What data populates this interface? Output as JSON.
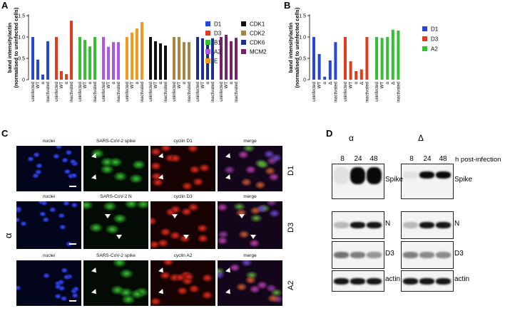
{
  "panels": {
    "a": "A",
    "b": "B",
    "c": "C",
    "d": "D"
  },
  "chart_data": [
    {
      "type": "bar",
      "ylabel": "band intensity/actin\n(normalised to uninfected cells)",
      "ylim": [
        0,
        1.5
      ],
      "yticks": [
        "0",
        "0.5",
        "1.0",
        "1.5"
      ],
      "ytick_values": [
        0,
        0.5,
        1.0,
        1.5
      ],
      "categories": [
        "uninfected",
        "WT",
        "α",
        "inactivated"
      ],
      "groups": [
        {
          "name": "D1",
          "color": "#2646d9",
          "values": [
            1.0,
            0.47,
            0.12,
            0.9
          ]
        },
        {
          "name": "D3",
          "color": "#e33b1e",
          "values": [
            1.0,
            0.2,
            0.13,
            1.38
          ]
        },
        {
          "name": "B1",
          "color": "#33c033",
          "values": [
            1.0,
            0.93,
            0.78,
            1.0
          ]
        },
        {
          "name": "A2",
          "color": "#b056e0",
          "values": [
            1.0,
            0.77,
            0.88,
            0.88
          ]
        },
        {
          "name": "E",
          "color": "#f29a1f",
          "values": [
            1.0,
            1.1,
            1.2,
            1.35
          ]
        },
        {
          "name": "CDK1",
          "color": "#111111",
          "values": [
            1.0,
            0.9,
            0.85,
            0.8
          ]
        },
        {
          "name": "CDK2",
          "color": "#a68740",
          "values": [
            1.0,
            1.0,
            0.88,
            0.88
          ]
        },
        {
          "name": "CDK6",
          "color": "#1c2f8f",
          "values": [
            1.0,
            0.97,
            0.85,
            0.97
          ]
        },
        {
          "name": "MCM2",
          "color": "#7a1f6b",
          "values": [
            1.0,
            1.05,
            0.9,
            0.98
          ]
        }
      ],
      "legend": [
        "D1",
        "D3",
        "B1",
        "A2",
        "E",
        "CDK1",
        "CDK2",
        "CDK6",
        "MCM2"
      ]
    },
    {
      "type": "bar",
      "ylabel": "band intensity/actin\n(normalised to uninfected cells)",
      "ylim": [
        0,
        1.5
      ],
      "yticks": [
        "0",
        "0.5",
        "1.0",
        "1.5"
      ],
      "ytick_values": [
        0,
        0.5,
        1.0,
        1.5
      ],
      "categories": [
        "uninfected",
        "WT",
        "α",
        "Δ",
        "inactivated"
      ],
      "groups": [
        {
          "name": "D1",
          "color": "#2646d9",
          "values": [
            1.0,
            0.6,
            0.07,
            0.45,
            0.88
          ]
        },
        {
          "name": "D3",
          "color": "#e33b1e",
          "values": [
            1.0,
            0.43,
            0.2,
            0.24,
            1.0
          ]
        },
        {
          "name": "A2",
          "color": "#33c033",
          "values": [
            1.0,
            0.98,
            1.0,
            1.17,
            1.15
          ]
        }
      ],
      "legend": [
        "D1",
        "D3",
        "A2"
      ]
    }
  ],
  "microscopy": {
    "variant": "α",
    "rows": [
      {
        "tag": "D1",
        "labels": [
          "nuclei",
          "SARS-CoV-2 spike",
          "cyclin D1",
          "merge"
        ]
      },
      {
        "tag": "D3",
        "labels": [
          "nuclei",
          "SARS-CoV-2 N",
          "cyclin D3",
          "merge"
        ]
      },
      {
        "tag": "A2",
        "labels": [
          "nuclei",
          "SARS-CoV-2 spike",
          "cyclin A2",
          "merge"
        ]
      }
    ]
  },
  "western": {
    "variants": [
      "α",
      "Δ"
    ],
    "timepoints": [
      "8",
      "24",
      "48"
    ],
    "time_unit": "h post-infection",
    "proteins": [
      "Spike",
      "N",
      "D3",
      "actin"
    ]
  }
}
